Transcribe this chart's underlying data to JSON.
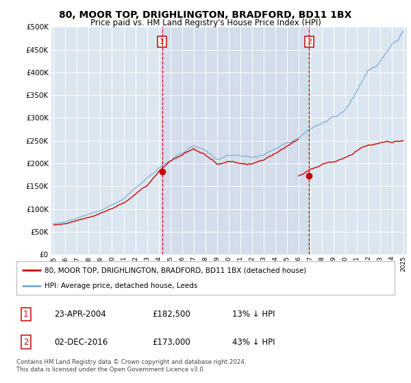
{
  "title": "80, MOOR TOP, DRIGHLINGTON, BRADFORD, BD11 1BX",
  "subtitle": "Price paid vs. HM Land Registry's House Price Index (HPI)",
  "title_fontsize": 10,
  "subtitle_fontsize": 8.5,
  "bg_color": "#dce6f0",
  "legend_label_red": "80, MOOR TOP, DRIGHLINGTON, BRADFORD, BD11 1BX (detached house)",
  "legend_label_blue": "HPI: Average price, detached house, Leeds",
  "annotation1_date": "23-APR-2004",
  "annotation1_price": "£182,500",
  "annotation1_hpi": "13% ↓ HPI",
  "annotation2_date": "02-DEC-2016",
  "annotation2_price": "£173,000",
  "annotation2_hpi": "43% ↓ HPI",
  "footer": "Contains HM Land Registry data © Crown copyright and database right 2024.\nThis data is licensed under the Open Government Licence v3.0.",
  "vline1_x": 2004.3,
  "vline2_x": 2016.92,
  "marker1_x": 2004.3,
  "marker1_y": 182500,
  "marker2_x": 2016.92,
  "marker2_y": 173000,
  "ylim": [
    0,
    500000
  ],
  "xlim": [
    1994.8,
    2025.3
  ],
  "year_ticks": [
    1995,
    1996,
    1997,
    1998,
    1999,
    2000,
    2001,
    2002,
    2003,
    2004,
    2005,
    2006,
    2007,
    2008,
    2009,
    2010,
    2011,
    2012,
    2013,
    2014,
    2015,
    2016,
    2017,
    2018,
    2019,
    2020,
    2021,
    2022,
    2023,
    2024,
    2025
  ],
  "shade_color": "#cdd8e8",
  "red_color": "#cc0000",
  "blue_color": "#7aadd4"
}
